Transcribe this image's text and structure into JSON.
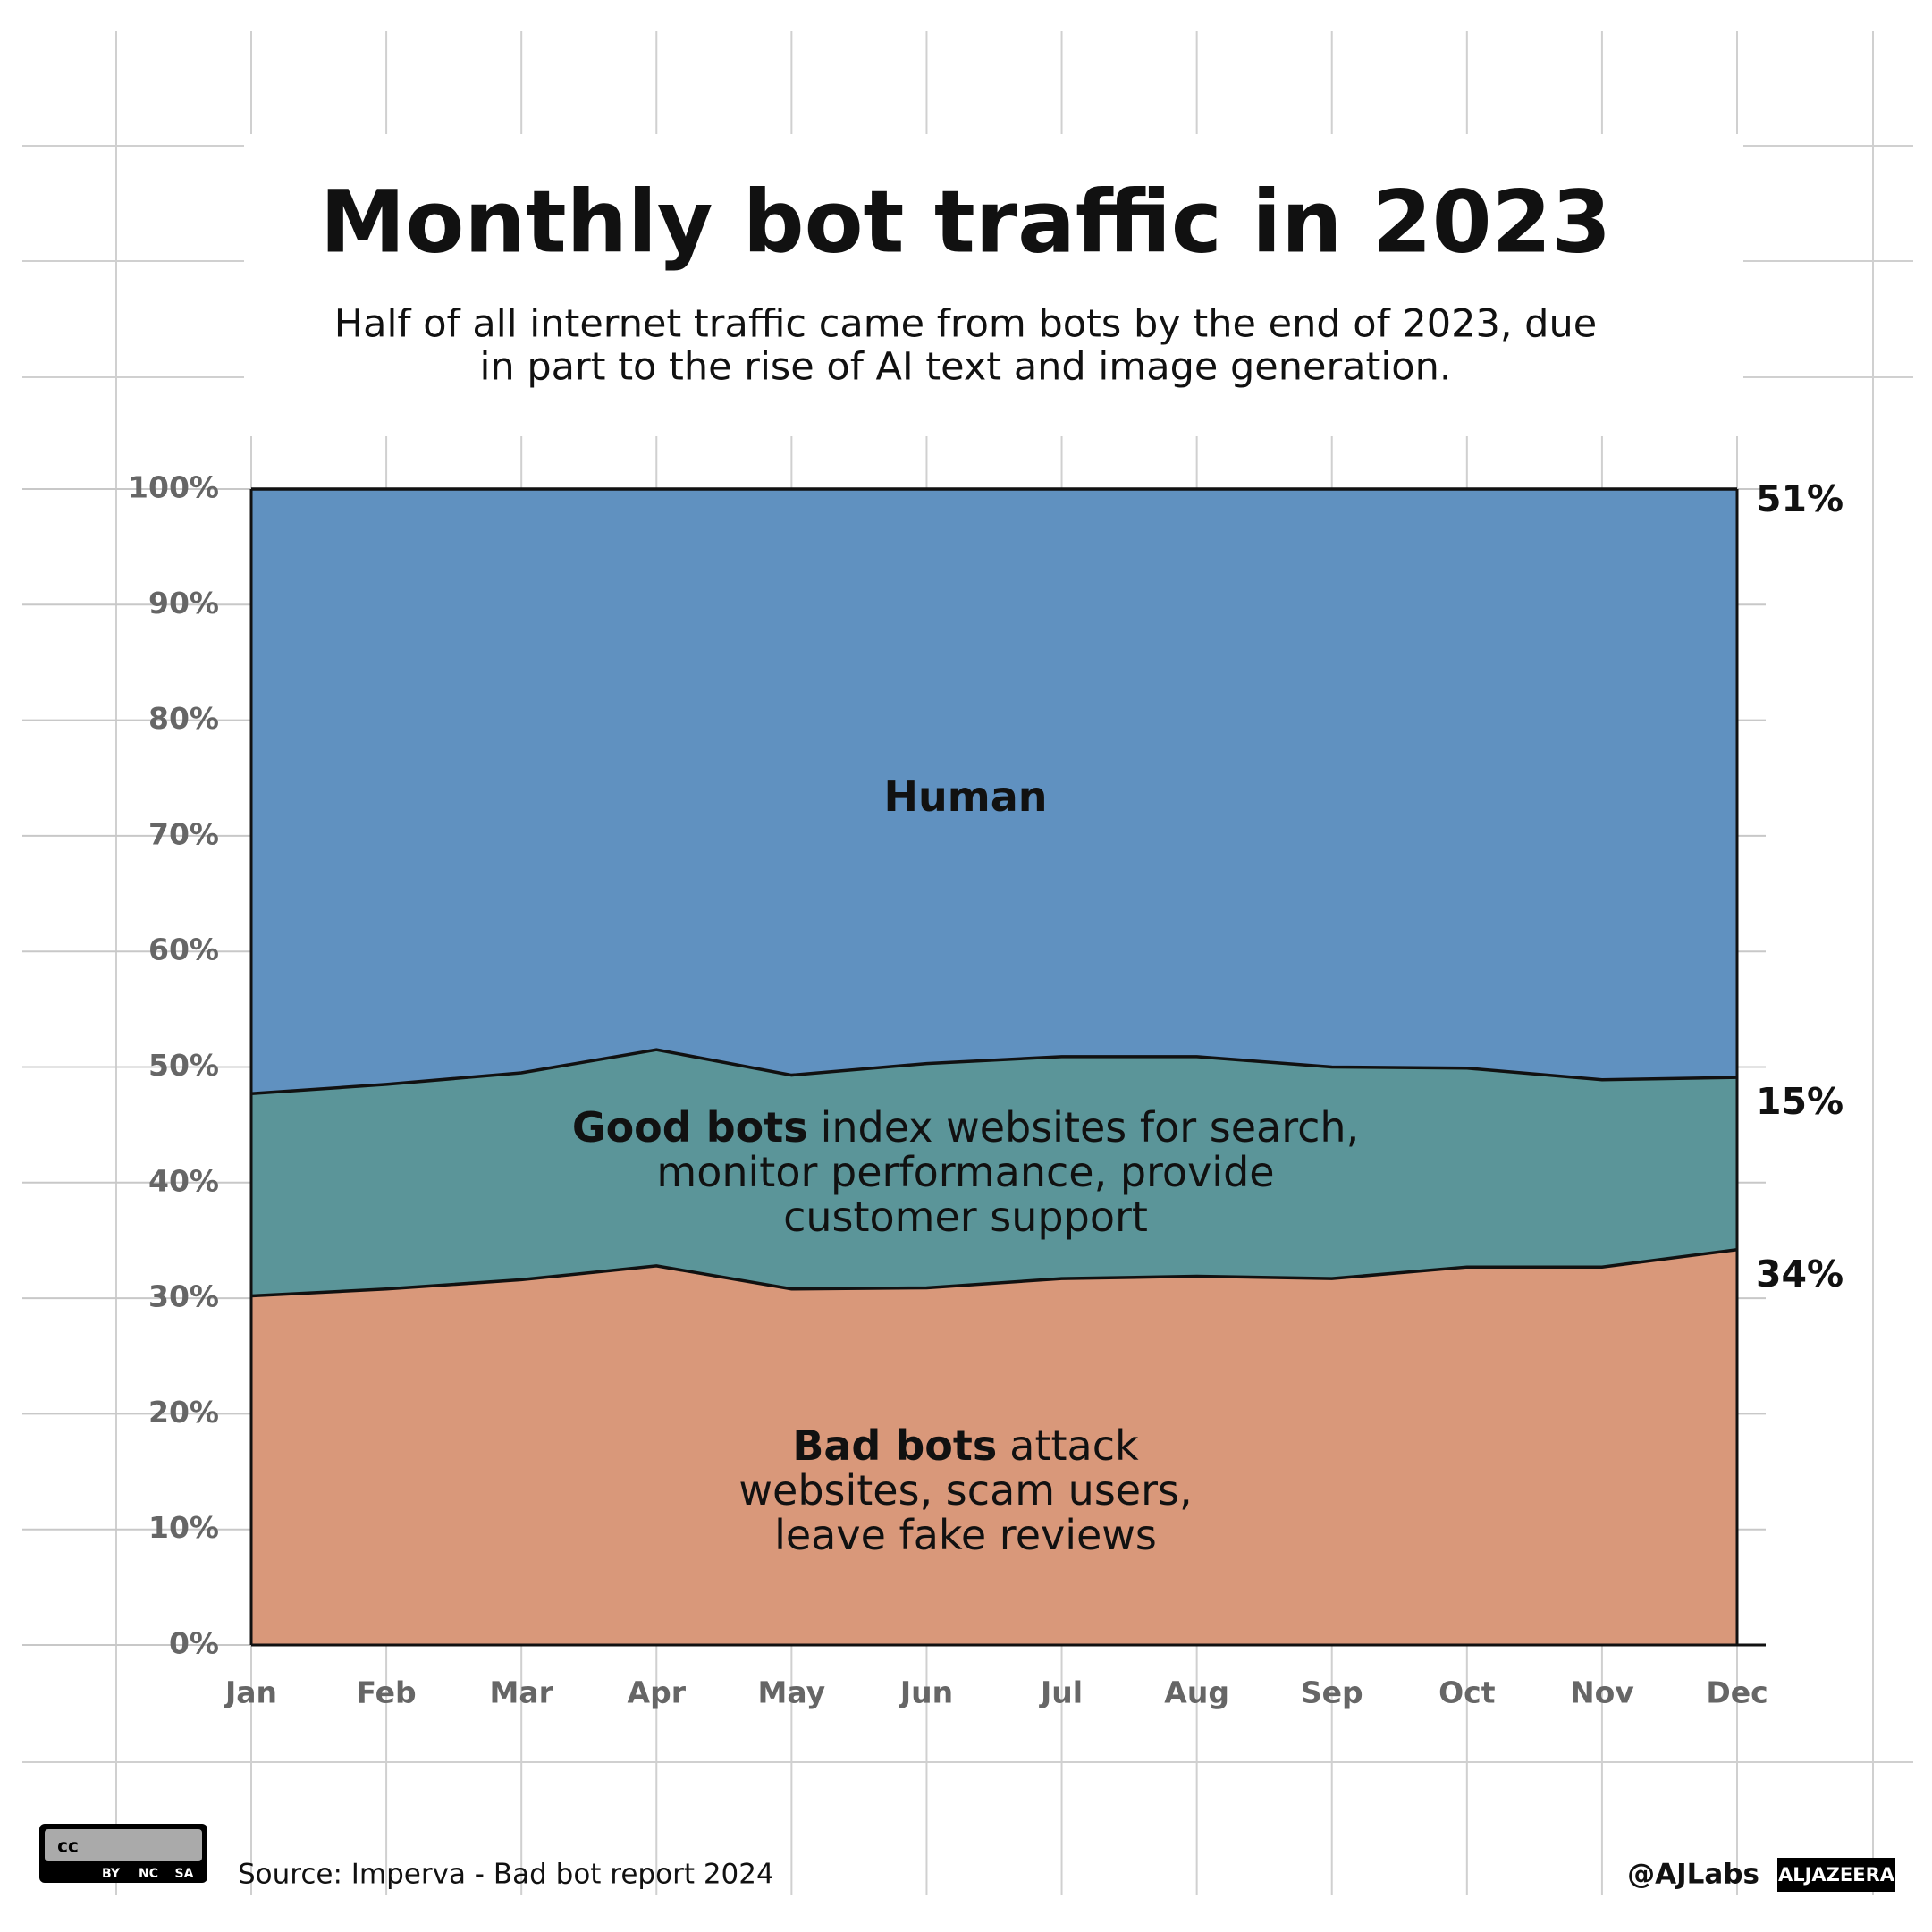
{
  "chart_data": {
    "type": "stacked-area",
    "title": "Monthly bot traffic in 2023",
    "subtitle": [
      "Half of all internet traffic came from bots by the end of 2023, due",
      "in part to the rise of AI text and image generation."
    ],
    "categories": [
      "Jan",
      "Feb",
      "Mar",
      "Apr",
      "May",
      "Jun",
      "Jul",
      "Aug",
      "Sep",
      "Oct",
      "Nov",
      "Dec"
    ],
    "series": [
      {
        "name": "Bad bots",
        "description": [
          "attack",
          "websites, scam users,",
          "leave fake reviews"
        ],
        "color": "#d9987a",
        "values": [
          30.2,
          30.8,
          31.6,
          32.8,
          30.8,
          30.9,
          31.7,
          31.9,
          31.7,
          32.7,
          32.7,
          34.2
        ],
        "value_labels": [
          null,
          null,
          null,
          null,
          null,
          null,
          null,
          null,
          null,
          null,
          null,
          "34%"
        ]
      },
      {
        "name": "Good bots",
        "description": [
          "index websites for search,",
          "monitor performance, provide",
          "customer support"
        ],
        "color": "#5b9599",
        "values": [
          17.5,
          17.7,
          17.9,
          18.7,
          18.5,
          19.4,
          19.2,
          19.0,
          18.3,
          17.2,
          16.2,
          14.9
        ],
        "value_labels": [
          null,
          null,
          null,
          null,
          null,
          null,
          null,
          null,
          null,
          null,
          null,
          "15%"
        ]
      },
      {
        "name": "Human",
        "color": "#6091c0",
        "values": [
          52.3,
          51.5,
          50.5,
          48.5,
          50.7,
          49.7,
          49.1,
          49.1,
          50.0,
          50.1,
          51.1,
          50.9
        ],
        "value_labels": [
          null,
          null,
          null,
          null,
          null,
          null,
          null,
          null,
          null,
          null,
          null,
          "51%"
        ]
      }
    ],
    "ylim": [
      0,
      100
    ],
    "yticks": [
      {
        "value": 0,
        "label": "0%"
      },
      {
        "value": 10,
        "label": "10%"
      },
      {
        "value": 20,
        "label": "20%"
      },
      {
        "value": 30,
        "label": "30%"
      },
      {
        "value": 40,
        "label": "40%"
      },
      {
        "value": 50,
        "label": "50%"
      },
      {
        "value": 60,
        "label": "60%"
      },
      {
        "value": 70,
        "label": "70%"
      },
      {
        "value": 80,
        "label": "80%"
      },
      {
        "value": 90,
        "label": "90%"
      },
      {
        "value": 100,
        "label": "100%"
      }
    ],
    "grid": true,
    "source": "Source: Imperva - Bad bot report 2024",
    "credit": "@AJLabs",
    "brand": "ALJAZEERA",
    "license": [
      "cc",
      "BY",
      "NC",
      "SA"
    ]
  }
}
